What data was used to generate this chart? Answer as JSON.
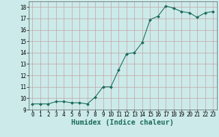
{
  "xlabel": "Humidex (Indice chaleur)",
  "x": [
    0,
    1,
    2,
    3,
    4,
    5,
    6,
    7,
    8,
    9,
    10,
    11,
    12,
    13,
    14,
    15,
    16,
    17,
    18,
    19,
    20,
    21,
    22,
    23
  ],
  "y": [
    9.5,
    9.5,
    9.5,
    9.7,
    9.7,
    9.6,
    9.6,
    9.5,
    10.1,
    11.0,
    11.0,
    12.5,
    13.9,
    14.0,
    14.9,
    16.9,
    17.2,
    18.1,
    17.9,
    17.6,
    17.5,
    17.1,
    17.5,
    17.6
  ],
  "line_color": "#1a6b5a",
  "marker": "D",
  "marker_size": 2.0,
  "bg_color": "#cceaea",
  "grid_color_major": "#c4a0a0",
  "grid_color_minor": "#c4a0a0",
  "ylim": [
    9,
    18.5
  ],
  "xlim": [
    -0.5,
    23.5
  ],
  "yticks": [
    9,
    10,
    11,
    12,
    13,
    14,
    15,
    16,
    17,
    18
  ],
  "xticks": [
    0,
    1,
    2,
    3,
    4,
    5,
    6,
    7,
    8,
    9,
    10,
    11,
    12,
    13,
    14,
    15,
    16,
    17,
    18,
    19,
    20,
    21,
    22,
    23
  ],
  "tick_fontsize": 5.5,
  "xlabel_fontsize": 7.5,
  "linewidth": 0.8
}
